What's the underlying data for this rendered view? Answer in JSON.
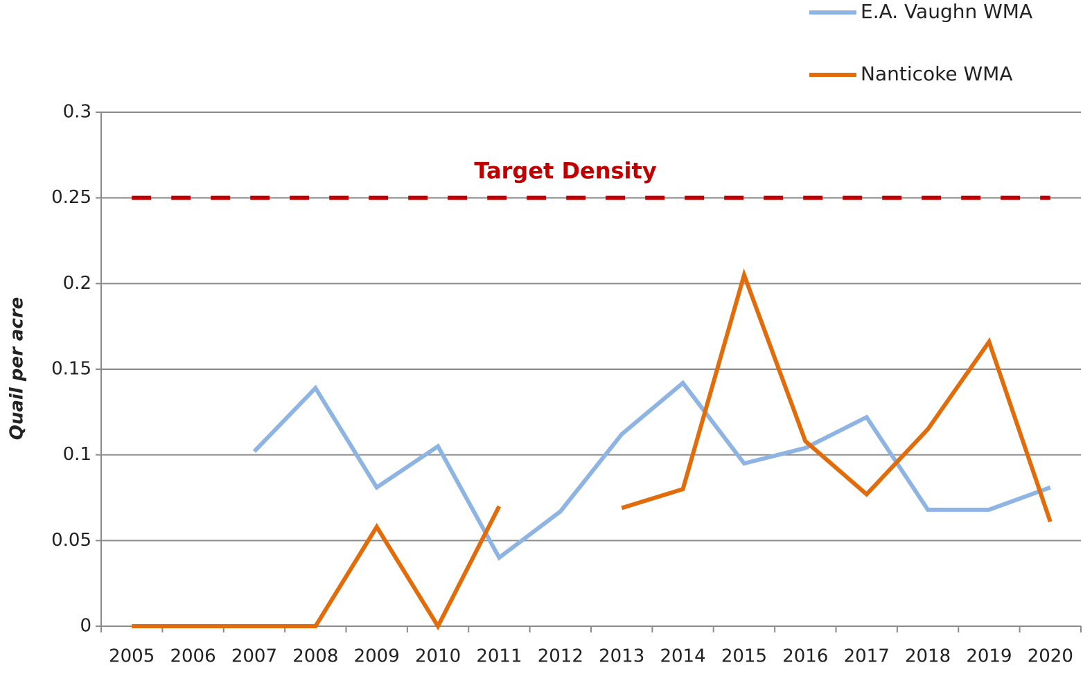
{
  "chart_data": {
    "type": "line",
    "y_label": "Quail per acre",
    "categories": [
      "2005",
      "2006",
      "2007",
      "2008",
      "2009",
      "2010",
      "2011",
      "2012",
      "2013",
      "2014",
      "2015",
      "2016",
      "2017",
      "2018",
      "2019",
      "2020"
    ],
    "series": [
      {
        "name": "E.A. Vaughn WMA",
        "color": "#8db4e2",
        "values": [
          null,
          null,
          0.102,
          0.139,
          0.081,
          0.105,
          0.04,
          0.067,
          0.112,
          0.142,
          0.095,
          0.104,
          0.122,
          0.068,
          0.068,
          0.081
        ]
      },
      {
        "name": "Nanticoke WMA",
        "color": "#e36c0a",
        "values": [
          0,
          0,
          0,
          0,
          0.058,
          0,
          0.07,
          null,
          0.069,
          0.08,
          0.205,
          0.108,
          0.077,
          0.115,
          0.166,
          0.061
        ]
      }
    ],
    "target": {
      "label": "Target Density",
      "value": 0.25,
      "color": "#c00000"
    },
    "ylim": [
      0,
      0.3
    ],
    "yticks": [
      0,
      0.05,
      0.1,
      0.15,
      0.2,
      0.25,
      0.3
    ],
    "grid": true,
    "legend": "top-right"
  }
}
